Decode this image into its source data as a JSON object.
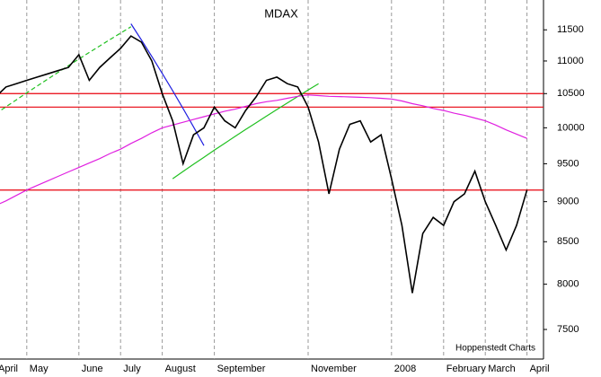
{
  "chart_data": {
    "type": "line",
    "title": "MDAX",
    "annotation": "Hoppenstedt Charts",
    "categories": [
      "April",
      null,
      null,
      "May",
      null,
      null,
      null,
      null,
      "June",
      null,
      null,
      null,
      "July",
      null,
      null,
      null,
      "August",
      null,
      null,
      null,
      null,
      "September",
      null,
      null,
      null,
      null,
      null,
      null,
      null,
      null,
      "November",
      null,
      null,
      null,
      null,
      null,
      null,
      null,
      "2008",
      null,
      null,
      null,
      null,
      "February",
      null,
      null,
      null,
      "March",
      null,
      null,
      null,
      "April"
    ],
    "log_scale": true,
    "ylim": [
      7190,
      12000
    ],
    "yticks": [
      7500,
      8000,
      8500,
      9000,
      9500,
      10000,
      10500,
      11000,
      11500
    ],
    "hlines": [
      {
        "value": 10500,
        "color": "#e8000b"
      },
      {
        "value": 10300,
        "color": "#e8000b"
      },
      {
        "value": 9150,
        "color": "#e8000b"
      }
    ],
    "series": [
      {
        "color": "#000000",
        "values": [
          10450,
          10600,
          10650,
          10700,
          10750,
          10800,
          10850,
          10900,
          11100,
          10700,
          10900,
          11050,
          11200,
          11400,
          11300,
          11000,
          10500,
          10100,
          9500,
          9900,
          10000,
          10300,
          10100,
          10000,
          10250,
          10450,
          10700,
          10750,
          10650,
          10600,
          10300,
          9800,
          9100,
          9700,
          10050,
          10100,
          9800,
          9900,
          9300,
          8700,
          7900,
          8600,
          8800,
          8700,
          9000,
          9100,
          9400,
          9000,
          8700,
          8400,
          8700,
          9150
        ]
      },
      {
        "color": "#e020e0",
        "values": [
          8950,
          9010,
          9080,
          9150,
          9210,
          9270,
          9330,
          9390,
          9450,
          9510,
          9570,
          9640,
          9700,
          9780,
          9850,
          9930,
          10000,
          10040,
          10080,
          10120,
          10160,
          10200,
          10240,
          10270,
          10310,
          10350,
          10380,
          10400,
          10430,
          10460,
          10480,
          10470,
          10460,
          10455,
          10450,
          10445,
          10440,
          10430,
          10420,
          10390,
          10350,
          10320,
          10280,
          10250,
          10210,
          10180,
          10140,
          10100,
          10040,
          9970,
          9910,
          9850
        ]
      },
      {
        "color": "#2020e0",
        "values": [
          null,
          null,
          null,
          null,
          null,
          null,
          null,
          null,
          null,
          null,
          null,
          null,
          null,
          11600,
          11336,
          11071,
          10807,
          10543,
          10279,
          10014,
          9750,
          null,
          null,
          null,
          null,
          null,
          null,
          null,
          null,
          null,
          null,
          null,
          null,
          null,
          null,
          null,
          null,
          null,
          null,
          null,
          null,
          null,
          null,
          null,
          null,
          null,
          null,
          null,
          null,
          null,
          null,
          null
        ]
      },
      {
        "color": "#20c020",
        "dashed": true,
        "values": [
          10200,
          10304,
          10408,
          10512,
          10615,
          10719,
          10823,
          10927,
          11031,
          11135,
          11238,
          11342,
          11446,
          11550,
          null,
          null,
          null,
          null,
          null,
          null,
          null,
          null,
          null,
          null,
          null,
          null,
          null,
          null,
          null,
          null,
          null,
          null,
          null,
          null,
          null,
          null,
          null,
          null,
          null,
          null,
          null,
          null,
          null,
          null,
          null,
          null,
          null,
          null,
          null,
          null,
          null,
          null
        ]
      },
      {
        "color": "#20c020",
        "values": [
          null,
          null,
          null,
          null,
          null,
          null,
          null,
          null,
          null,
          null,
          null,
          null,
          null,
          null,
          null,
          null,
          null,
          9300,
          9396,
          9493,
          9589,
          9686,
          9782,
          9879,
          9975,
          10071,
          10168,
          10264,
          10361,
          10457,
          10554,
          10650,
          null,
          null,
          null,
          null,
          null,
          null,
          null,
          null,
          null,
          null,
          null,
          null,
          null,
          null,
          null,
          null,
          null,
          null,
          null,
          null
        ]
      }
    ]
  }
}
